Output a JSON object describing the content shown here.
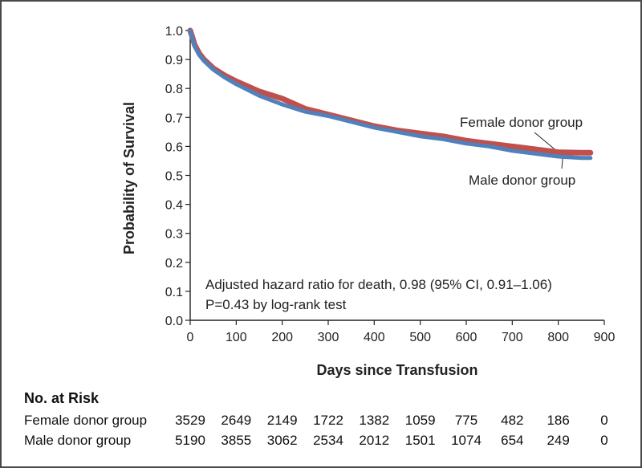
{
  "chart_data": {
    "type": "line",
    "title": "",
    "xlabel": "Days since Transfusion",
    "ylabel": "Probability of Survival",
    "xlim": [
      0,
      900
    ],
    "ylim": [
      0.0,
      1.0
    ],
    "x_ticks": [
      "0",
      "100",
      "200",
      "300",
      "400",
      "500",
      "600",
      "700",
      "800",
      "900"
    ],
    "y_ticks": [
      "0.0",
      "0.1",
      "0.2",
      "0.3",
      "0.4",
      "0.5",
      "0.6",
      "0.7",
      "0.8",
      "0.9",
      "1.0"
    ],
    "series": [
      {
        "name": "Female donor group",
        "color": "#c0504d",
        "x": [
          0,
          5,
          10,
          20,
          30,
          50,
          75,
          100,
          150,
          200,
          250,
          300,
          350,
          400,
          450,
          500,
          550,
          600,
          650,
          700,
          750,
          800,
          850,
          870
        ],
        "y": [
          1.0,
          0.975,
          0.95,
          0.92,
          0.9,
          0.87,
          0.845,
          0.825,
          0.79,
          0.765,
          0.73,
          0.71,
          0.69,
          0.67,
          0.655,
          0.645,
          0.635,
          0.62,
          0.61,
          0.6,
          0.59,
          0.58,
          0.578,
          0.578
        ]
      },
      {
        "name": "Male donor group",
        "color": "#4f81bd",
        "x": [
          0,
          5,
          10,
          20,
          30,
          50,
          75,
          100,
          150,
          200,
          250,
          300,
          350,
          400,
          450,
          500,
          550,
          600,
          650,
          700,
          750,
          800,
          850,
          870
        ],
        "y": [
          1.0,
          0.97,
          0.945,
          0.915,
          0.895,
          0.865,
          0.838,
          0.815,
          0.775,
          0.745,
          0.72,
          0.705,
          0.685,
          0.665,
          0.65,
          0.635,
          0.625,
          0.61,
          0.6,
          0.585,
          0.575,
          0.565,
          0.56,
          0.56
        ]
      }
    ],
    "annotations": [
      {
        "text": "Female donor group",
        "series": "Female donor group"
      },
      {
        "text": "Male donor group",
        "series": "Male donor group"
      },
      {
        "text": "Adjusted hazard ratio for death, 0.98 (95% CI, 0.91–1.06)"
      },
      {
        "text": "P=0.43 by log-rank test"
      }
    ],
    "risk_table": {
      "title": "No. at Risk",
      "days": [
        0,
        100,
        200,
        300,
        400,
        500,
        600,
        700,
        800,
        900
      ],
      "rows": [
        {
          "label": "Female donor group",
          "values": [
            "3529",
            "2649",
            "2149",
            "1722",
            "1382",
            "1059",
            "775",
            "482",
            "186",
            "0"
          ]
        },
        {
          "label": "Male donor group",
          "values": [
            "5190",
            "3855",
            "3062",
            "2534",
            "2012",
            "1501",
            "1074",
            "654",
            "249",
            "0"
          ]
        }
      ]
    }
  }
}
